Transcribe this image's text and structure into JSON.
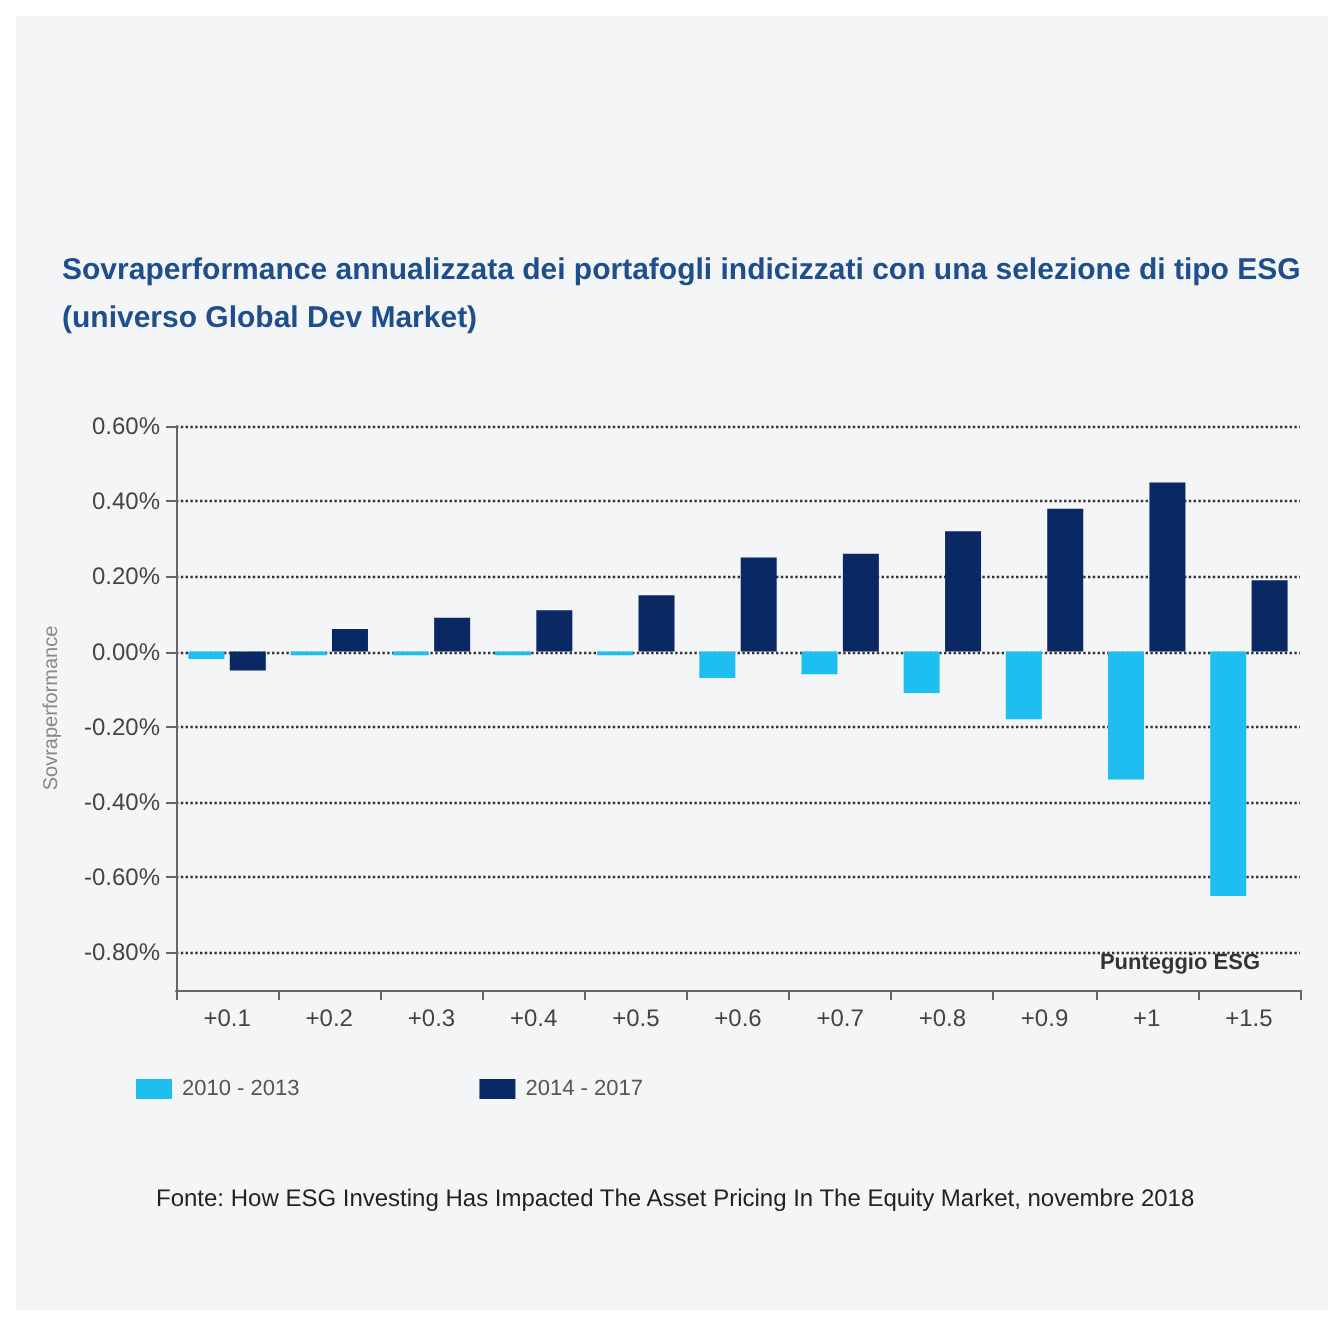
{
  "chart_data": {
    "type": "bar",
    "title": "Sovraperformance annualizzata dei portafogli indicizzati con una selezione di tipo ESG\n(universo Global Dev Market)",
    "xlabel": "Punteggio ESG",
    "ylabel": "Sovraperformance",
    "categories": [
      "+0.1",
      "+0.2",
      "+0.3",
      "+0.4",
      "+0.5",
      "+0.6",
      "+0.7",
      "+0.8",
      "+0.9",
      "+1",
      "+1.5"
    ],
    "series": [
      {
        "name": "2010 - 2013",
        "color": "#1ebef0",
        "values": [
          -0.02,
          -0.01,
          -0.01,
          -0.01,
          -0.01,
          -0.07,
          -0.06,
          -0.11,
          -0.18,
          -0.34,
          -0.65
        ]
      },
      {
        "name": "2014 - 2017",
        "color": "#0a2864",
        "values": [
          -0.05,
          0.06,
          0.09,
          0.11,
          0.15,
          0.25,
          0.26,
          0.32,
          0.38,
          0.45,
          0.19
        ]
      }
    ],
    "ylim": [
      -0.9,
      0.6
    ],
    "yticks": [
      {
        "value": -0.8,
        "label": "-0.80%"
      },
      {
        "value": -0.6,
        "label": "-0.60%"
      },
      {
        "value": -0.4,
        "label": "-0.40%"
      },
      {
        "value": -0.2,
        "label": "-0.20%"
      },
      {
        "value": 0,
        "label": "0.00%"
      },
      {
        "value": 0.2,
        "label": "0.20%"
      },
      {
        "value": 0.4,
        "label": "0.40%"
      },
      {
        "value": 0.6,
        "label": "0.60%"
      }
    ],
    "grid": "y",
    "legend": "bottom left",
    "annotations": [
      "Fonte: How ESG Investing Has Impacted The Asset Pricing In The Equity Market, novembre 2018"
    ]
  }
}
